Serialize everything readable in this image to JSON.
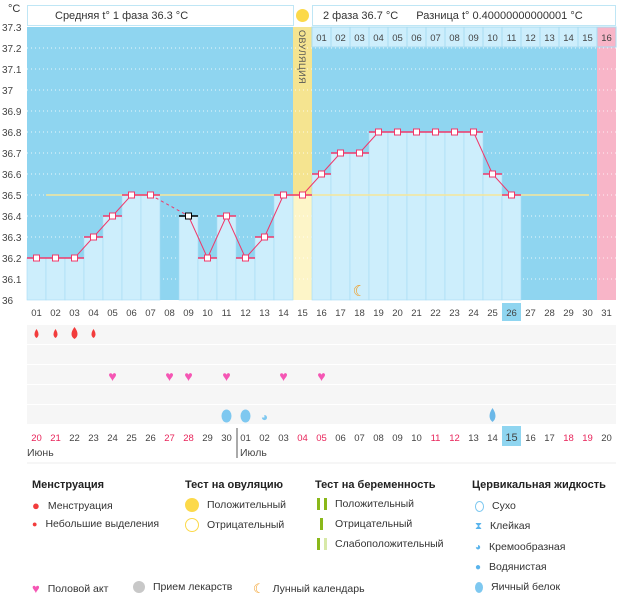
{
  "unit": "°C",
  "header": {
    "phase1": "Средняя t° 1 фаза 36.3 °C",
    "phase2": "2 фаза 36.7 °C",
    "diff": "Разница t° 0.40000000000001 °C",
    "ovulation_label": "ОВУЛЯЦИЯ"
  },
  "chart_data": {
    "type": "bar",
    "ylim": [
      36,
      37.3
    ],
    "yticks": [
      "36",
      "36.1",
      "36.2",
      "36.3",
      "36.4",
      "36.5",
      "36.6",
      "36.7",
      "36.8",
      "36.9",
      "37",
      "37.1",
      "37.2",
      "37.3"
    ],
    "cycle_days": [
      "01",
      "02",
      "03",
      "04",
      "05",
      "06",
      "07",
      "08",
      "09",
      "10",
      "11",
      "12",
      "13",
      "14",
      "15",
      "16",
      "17",
      "18",
      "19",
      "20",
      "21",
      "22",
      "23",
      "24",
      "25",
      "26",
      "27",
      "28",
      "29",
      "30",
      "31"
    ],
    "temperatures": [
      36.2,
      36.2,
      36.2,
      36.3,
      36.4,
      36.5,
      36.5,
      null,
      36.4,
      36.2,
      36.4,
      36.2,
      36.3,
      36.5,
      36.5,
      36.6,
      36.7,
      36.7,
      36.8,
      36.8,
      36.8,
      36.8,
      36.8,
      36.8,
      36.6,
      36.5,
      null,
      null,
      null,
      null,
      null
    ],
    "excluded_day": 9,
    "coverline": 36.5,
    "ovulation_day": 15,
    "current_cycle_day": "26",
    "phase2_days": [
      "01",
      "02",
      "03",
      "04",
      "05",
      "06",
      "07",
      "08",
      "09",
      "10",
      "11",
      "12",
      "13",
      "14",
      "15",
      "16"
    ],
    "next_period_day": 31,
    "moon_day": 18,
    "menstruation": {
      "1": "spotting",
      "2": "spotting",
      "3": "menstruation",
      "4": "spotting"
    },
    "intercourse_days": [
      5,
      8,
      9,
      11,
      14,
      16
    ],
    "cervical": {
      "11": "egg-white",
      "12": "egg-white",
      "13": "creamy",
      "25": "watery"
    },
    "dates": [
      "20",
      "21",
      "22",
      "23",
      "24",
      "25",
      "26",
      "27",
      "28",
      "29",
      "30",
      "01",
      "02",
      "03",
      "04",
      "05",
      "06",
      "07",
      "08",
      "09",
      "10",
      "11",
      "12",
      "13",
      "14",
      "15",
      "16",
      "17",
      "18",
      "19",
      "20"
    ],
    "weekend_dates_idx": [
      0,
      1,
      7,
      8,
      14,
      15,
      21,
      22,
      28,
      29
    ],
    "today_idx": 25,
    "months": [
      "Июнь",
      "Июль"
    ]
  },
  "colors": {
    "bg": "#8fd5f0",
    "bar": "#cdeefc",
    "line": "#f0386a",
    "coverline": "#f5e69a",
    "ovulation": "#fdf5c8",
    "pink": "#f8b5c8",
    "today": "#8fd5f0"
  },
  "legend": {
    "menstruation": {
      "title": "Менструация",
      "items": [
        "Менструация",
        "Небольшие выделения"
      ]
    },
    "ovulation_test": {
      "title": "Тест на овуляцию",
      "items": [
        "Положительный",
        "Отрицательный"
      ]
    },
    "pregnancy_test": {
      "title": "Тест на беременность",
      "items": [
        "Положительный",
        "Отрицательный",
        "Слабоположительный"
      ]
    },
    "cervical": {
      "title": "Цервикальная жидкость",
      "items": [
        "Сухо",
        "Клейкая",
        "Кремообразная",
        "Водянистая",
        "Яичный белок"
      ]
    },
    "other": [
      "Половой акт",
      "Прием лекарств",
      "Лунный календарь"
    ]
  }
}
